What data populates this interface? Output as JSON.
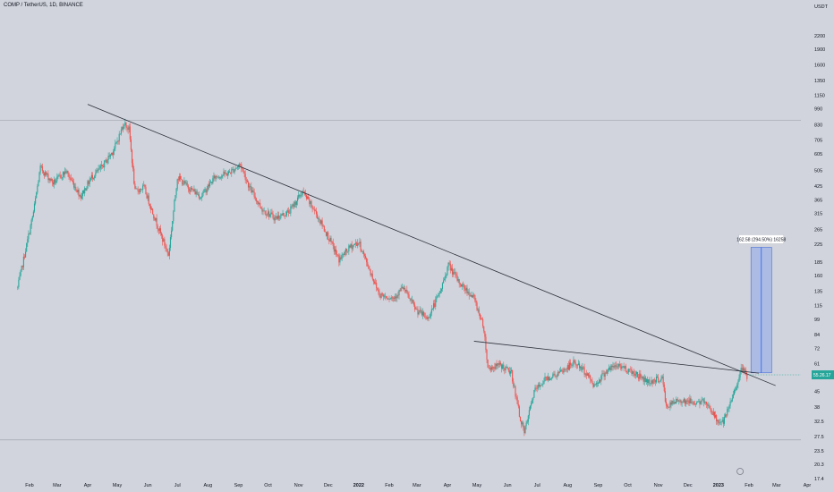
{
  "header": {
    "symbol_line": "COMP / TetherUS, 1D, BINANCE"
  },
  "chart_data": {
    "type": "candlestick",
    "currency": "USDT",
    "y_scale": "log",
    "grid": false,
    "y_ticks": [
      2200,
      1900,
      1600,
      1350,
      1150,
      990,
      830,
      705,
      605,
      505,
      425,
      365,
      315,
      265,
      225,
      185,
      160,
      135,
      115,
      99,
      84,
      72,
      61,
      53,
      45,
      38,
      32.5,
      27.5,
      23.5,
      20.3,
      17.4
    ],
    "x_ticks": [
      "Feb",
      "Mar",
      "Apr",
      "May",
      "Jun",
      "Jul",
      "Aug",
      "Sep",
      "Oct",
      "Nov",
      "Dec",
      "2022",
      "Feb",
      "Mar",
      "Apr",
      "May",
      "Jun",
      "Jul",
      "Aug",
      "Sep",
      "Oct",
      "Nov",
      "Dec",
      "2023",
      "Feb",
      "Mar",
      "Apr"
    ],
    "x_range": [
      "2021-01-20",
      "2023-04-15"
    ],
    "price_path": [
      [
        "2021-01-20",
        140
      ],
      [
        "2021-02-05",
        320
      ],
      [
        "2021-02-12",
        520
      ],
      [
        "2021-02-25",
        440
      ],
      [
        "2021-03-10",
        500
      ],
      [
        "2021-03-25",
        380
      ],
      [
        "2021-04-05",
        470
      ],
      [
        "2021-04-15",
        520
      ],
      [
        "2021-04-28",
        640
      ],
      [
        "2021-05-08",
        850
      ],
      [
        "2021-05-13",
        790
      ],
      [
        "2021-05-19",
        400
      ],
      [
        "2021-05-28",
        420
      ],
      [
        "2021-06-08",
        300
      ],
      [
        "2021-06-22",
        200
      ],
      [
        "2021-07-01",
        470
      ],
      [
        "2021-07-12",
        420
      ],
      [
        "2021-07-25",
        380
      ],
      [
        "2021-08-08",
        470
      ],
      [
        "2021-08-22",
        490
      ],
      [
        "2021-09-03",
        540
      ],
      [
        "2021-09-12",
        420
      ],
      [
        "2021-09-25",
        330
      ],
      [
        "2021-10-08",
        300
      ],
      [
        "2021-10-22",
        320
      ],
      [
        "2021-11-05",
        400
      ],
      [
        "2021-11-18",
        320
      ],
      [
        "2021-11-30",
        250
      ],
      [
        "2021-12-12",
        190
      ],
      [
        "2021-12-24",
        220
      ],
      [
        "2022-01-01",
        230
      ],
      [
        "2022-01-08",
        190
      ],
      [
        "2022-01-22",
        130
      ],
      [
        "2022-02-05",
        125
      ],
      [
        "2022-02-15",
        140
      ],
      [
        "2022-02-28",
        110
      ],
      [
        "2022-03-12",
        100
      ],
      [
        "2022-03-25",
        135
      ],
      [
        "2022-04-02",
        180
      ],
      [
        "2022-04-12",
        150
      ],
      [
        "2022-04-28",
        125
      ],
      [
        "2022-05-08",
        90
      ],
      [
        "2022-05-12",
        58
      ],
      [
        "2022-05-25",
        60
      ],
      [
        "2022-06-05",
        55
      ],
      [
        "2022-06-13",
        35
      ],
      [
        "2022-06-18",
        28.5
      ],
      [
        "2022-06-28",
        45
      ],
      [
        "2022-07-10",
        52
      ],
      [
        "2022-07-24",
        55
      ],
      [
        "2022-08-08",
        62
      ],
      [
        "2022-08-20",
        55
      ],
      [
        "2022-08-28",
        48
      ],
      [
        "2022-09-10",
        57
      ],
      [
        "2022-09-22",
        60
      ],
      [
        "2022-10-08",
        55
      ],
      [
        "2022-10-22",
        50
      ],
      [
        "2022-11-05",
        52
      ],
      [
        "2022-11-09",
        38
      ],
      [
        "2022-11-22",
        41
      ],
      [
        "2022-12-08",
        40
      ],
      [
        "2022-12-20",
        40
      ],
      [
        "2022-12-30",
        33
      ],
      [
        "2023-01-06",
        32
      ],
      [
        "2023-01-12",
        38
      ],
      [
        "2023-01-20",
        50
      ],
      [
        "2023-01-25",
        58
      ],
      [
        "2023-01-30",
        53
      ]
    ],
    "trendlines": [
      {
        "from": [
          "2021-04-01",
          1040
        ],
        "to": [
          "2023-02-28",
          48
        ]
      },
      {
        "from": [
          "2022-04-28",
          78
        ],
        "to": [
          "2023-02-11",
          55
        ]
      }
    ],
    "reference_lines": [
      873,
      26.5
    ],
    "measurement": {
      "label": "162.58 (294.50%) 16258",
      "from_date": "2023-02-03",
      "to_date": "2023-02-24",
      "low": 55.2,
      "high": 217.8
    },
    "current_price": {
      "label": "55.26.17",
      "value": 54
    }
  }
}
